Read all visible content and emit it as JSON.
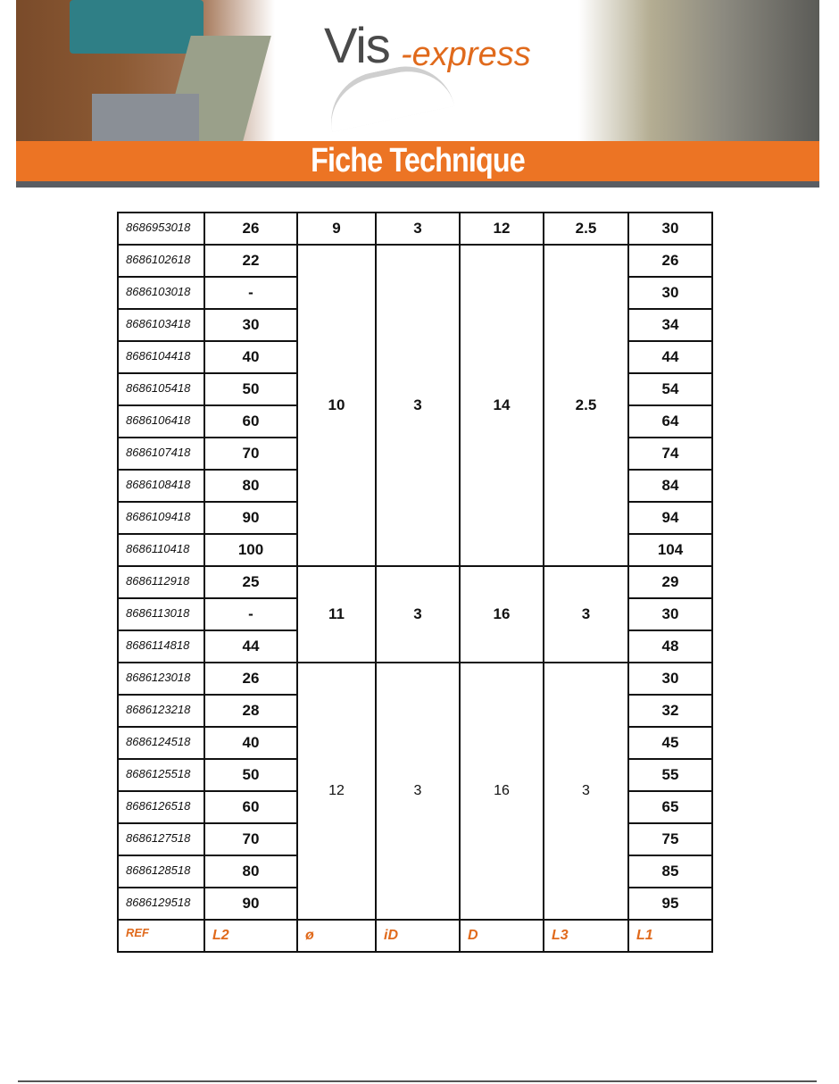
{
  "header": {
    "logo_main": "Vis",
    "logo_suffix": "-express",
    "title": "Fiche Technique"
  },
  "colors": {
    "accent": "#ec7424",
    "rule": "#5a5d62"
  },
  "table": {
    "footer": [
      "REF",
      "L2",
      "ø",
      "iD",
      "D",
      "L3",
      "L1"
    ],
    "groups": [
      {
        "bold": true,
        "diameter": "9",
        "id": "3",
        "d": "12",
        "l3": "2.5",
        "rows": [
          {
            "ref": "8686953018",
            "l2": "26",
            "l1": "30"
          }
        ]
      },
      {
        "bold": true,
        "diameter": "10",
        "id": "3",
        "d": "14",
        "l3": "2.5",
        "rows": [
          {
            "ref": "8686102618",
            "l2": "22",
            "l1": "26"
          },
          {
            "ref": "8686103018",
            "l2": "-",
            "l1": "30"
          },
          {
            "ref": "8686103418",
            "l2": "30",
            "l1": "34"
          },
          {
            "ref": "8686104418",
            "l2": "40",
            "l1": "44"
          },
          {
            "ref": "8686105418",
            "l2": "50",
            "l1": "54"
          },
          {
            "ref": "8686106418",
            "l2": "60",
            "l1": "64"
          },
          {
            "ref": "8686107418",
            "l2": "70",
            "l1": "74"
          },
          {
            "ref": "8686108418",
            "l2": "80",
            "l1": "84"
          },
          {
            "ref": "8686109418",
            "l2": "90",
            "l1": "94"
          },
          {
            "ref": "8686110418",
            "l2": "100",
            "l1": "104"
          }
        ]
      },
      {
        "bold": true,
        "diameter": "11",
        "id": "3",
        "d": "16",
        "l3": "3",
        "rows": [
          {
            "ref": "8686112918",
            "l2": "25",
            "l1": "29"
          },
          {
            "ref": "8686113018",
            "l2": "-",
            "l1": "30"
          },
          {
            "ref": "8686114818",
            "l2": "44",
            "l1": "48"
          }
        ]
      },
      {
        "bold": false,
        "diameter": "12",
        "id": "3",
        "d": "16",
        "l3": "3",
        "rows": [
          {
            "ref": "8686123018",
            "l2": "26",
            "l1": "30"
          },
          {
            "ref": "8686123218",
            "l2": "28",
            "l1": "32"
          },
          {
            "ref": "8686124518",
            "l2": "40",
            "l1": "45"
          },
          {
            "ref": "8686125518",
            "l2": "50",
            "l1": "55"
          },
          {
            "ref": "8686126518",
            "l2": "60",
            "l1": "65"
          },
          {
            "ref": "8686127518",
            "l2": "70",
            "l1": "75"
          },
          {
            "ref": "8686128518",
            "l2": "80",
            "l1": "85"
          },
          {
            "ref": "8686129518",
            "l2": "90",
            "l1": "95"
          }
        ]
      }
    ]
  }
}
